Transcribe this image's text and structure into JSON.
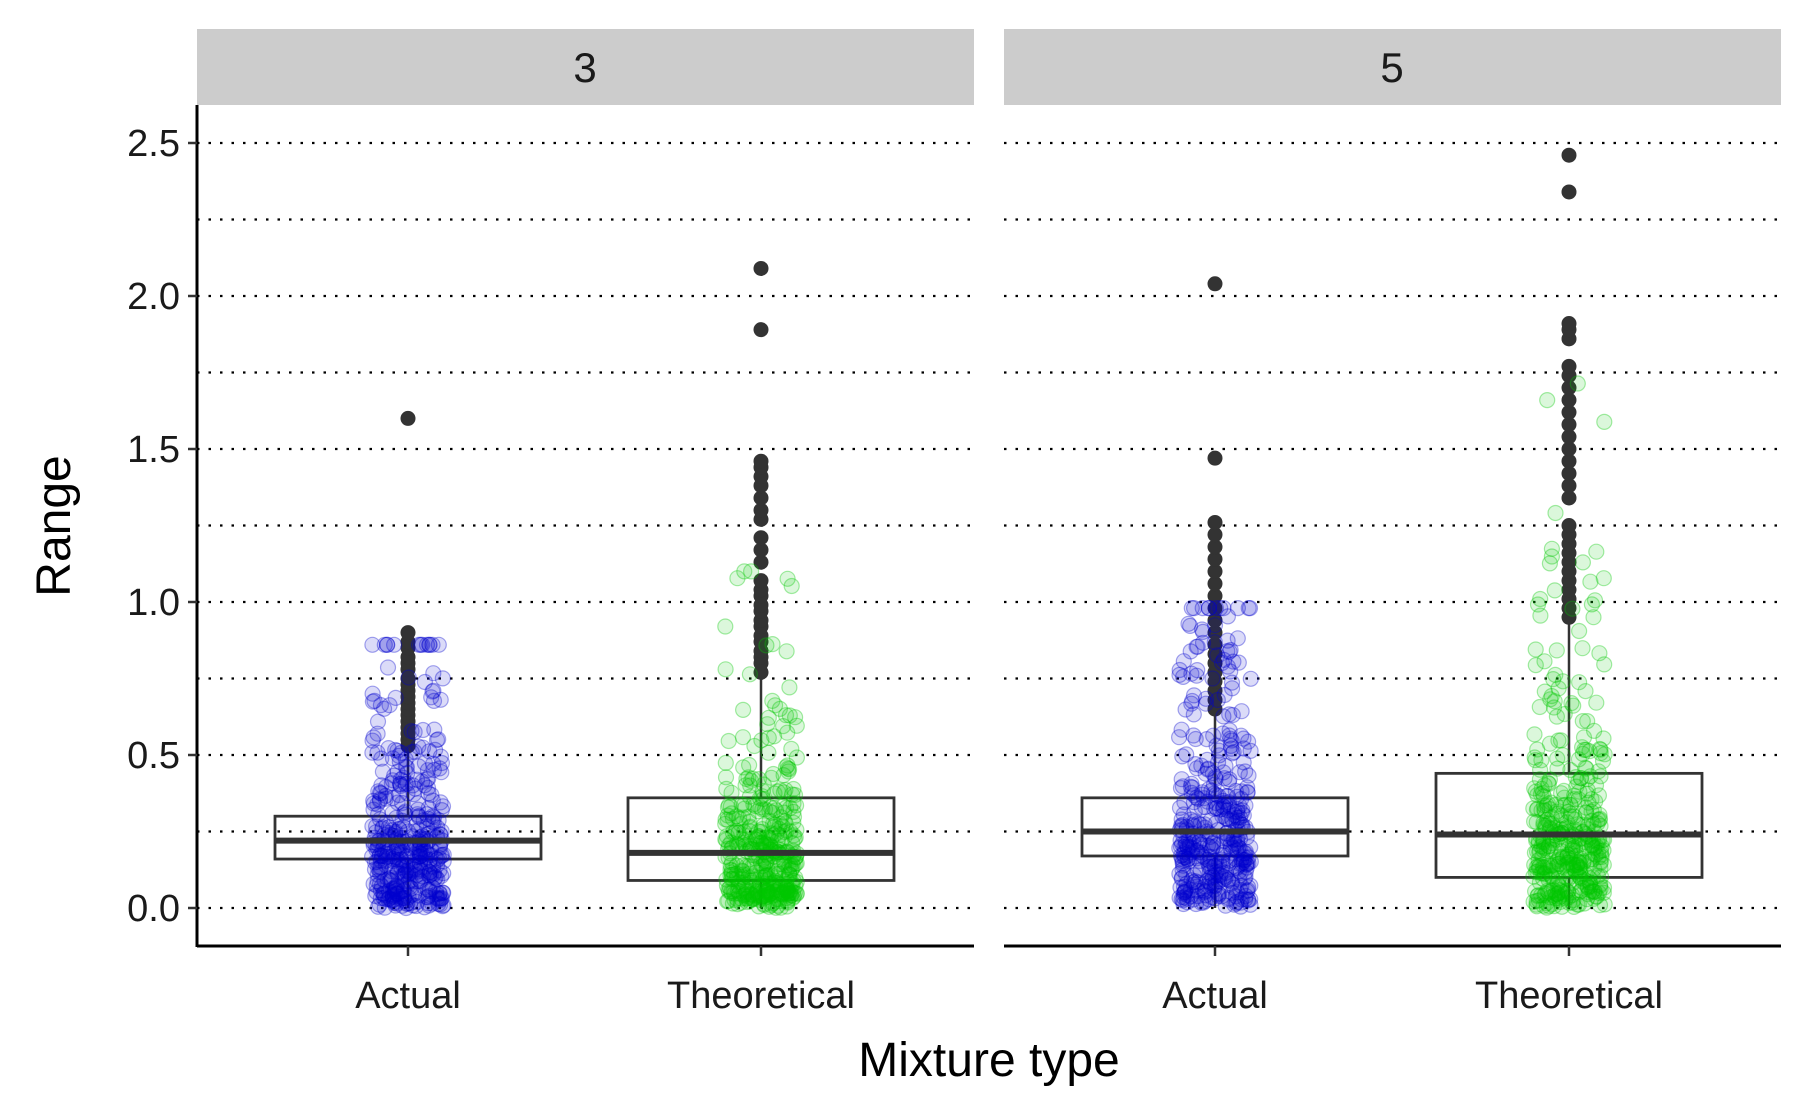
{
  "chart_data": {
    "type": "boxplot",
    "xlabel": "Mixture type",
    "ylabel": "Range",
    "ylim": [
      -0.12,
      2.63
    ],
    "y_ticks": [
      "0.0",
      "0.5",
      "1.0",
      "1.5",
      "2.0",
      "2.5"
    ],
    "y_tick_values": [
      0.0,
      0.5,
      1.0,
      1.5,
      2.0,
      2.5
    ],
    "grid": "horizontal dotted at major and minor breaks",
    "categories": [
      "Actual",
      "Theoretical"
    ],
    "panels": [
      {
        "label": "3",
        "boxes": [
          {
            "category": "Actual",
            "q1": 0.16,
            "median": 0.22,
            "q3": 0.3,
            "whisker_low": 0.0,
            "whisker_high": 0.51,
            "outliers": [
              0.53,
              0.55,
              0.57,
              0.59,
              0.61,
              0.63,
              0.65,
              0.67,
              0.69,
              0.71,
              0.73,
              0.75,
              0.78,
              0.8,
              0.82,
              0.85,
              0.87,
              0.9,
              1.6
            ],
            "jitter": {
              "count": 420,
              "color": "#0000cd",
              "median": 0.22,
              "spread": 0.14
            }
          },
          {
            "category": "Theoretical",
            "q1": 0.09,
            "median": 0.18,
            "q3": 0.36,
            "whisker_low": 0.0,
            "whisker_high": 0.75,
            "outliers": [
              0.77,
              0.8,
              0.82,
              0.84,
              0.87,
              0.89,
              0.92,
              0.94,
              0.97,
              0.99,
              1.02,
              1.04,
              1.07,
              1.13,
              1.17,
              1.21,
              1.27,
              1.3,
              1.34,
              1.38,
              1.41,
              1.44,
              1.46,
              1.89,
              2.09
            ],
            "jitter": {
              "count": 420,
              "color": "#00c800",
              "median": 0.18,
              "spread": 0.24
            }
          }
        ]
      },
      {
        "label": "5",
        "boxes": [
          {
            "category": "Actual",
            "q1": 0.17,
            "median": 0.25,
            "q3": 0.36,
            "whisker_low": 0.0,
            "whisker_high": 0.63,
            "outliers": [
              0.65,
              0.68,
              0.71,
              0.74,
              0.77,
              0.8,
              0.83,
              0.86,
              0.9,
              0.94,
              0.98,
              1.02,
              1.06,
              1.1,
              1.14,
              1.18,
              1.22,
              1.26,
              1.47,
              2.04
            ],
            "jitter": {
              "count": 420,
              "color": "#0000cd",
              "median": 0.25,
              "spread": 0.18
            }
          },
          {
            "category": "Theoretical",
            "q1": 0.1,
            "median": 0.24,
            "q3": 0.44,
            "whisker_low": 0.0,
            "whisker_high": 0.93,
            "outliers": [
              0.95,
              0.98,
              1.01,
              1.04,
              1.07,
              1.1,
              1.13,
              1.16,
              1.19,
              1.22,
              1.25,
              1.34,
              1.38,
              1.42,
              1.46,
              1.5,
              1.54,
              1.58,
              1.62,
              1.66,
              1.7,
              1.74,
              1.77,
              1.86,
              1.89,
              1.91,
              2.34,
              2.46
            ],
            "jitter": {
              "count": 420,
              "color": "#00c800",
              "median": 0.24,
              "spread": 0.3
            }
          }
        ]
      }
    ]
  }
}
